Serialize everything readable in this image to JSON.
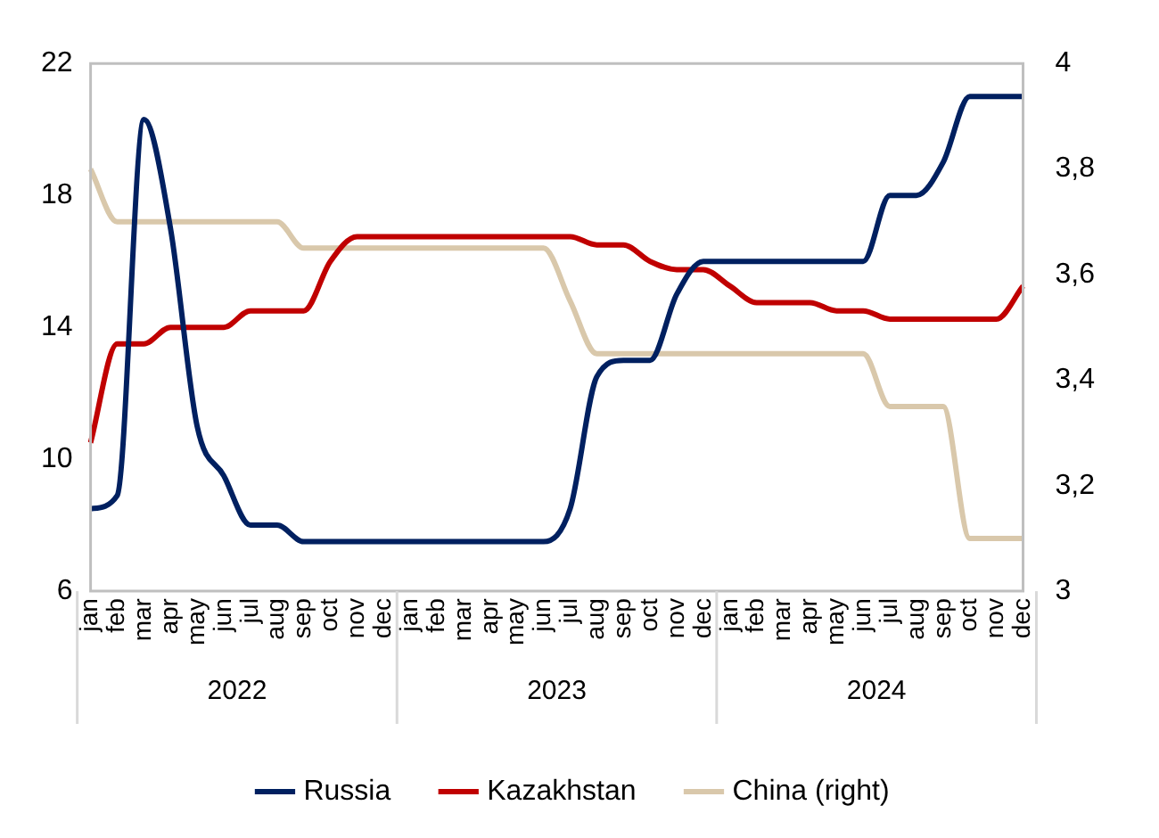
{
  "chart_data": {
    "type": "line",
    "categories": [
      "jan",
      "feb",
      "mar",
      "apr",
      "may",
      "jun",
      "jul",
      "aug",
      "sep",
      "oct",
      "nov",
      "dec",
      "jan",
      "feb",
      "mar",
      "apr",
      "may",
      "jun",
      "jul",
      "aug",
      "sep",
      "oct",
      "nov",
      "dec",
      "jan",
      "feb",
      "mar",
      "apr",
      "may",
      "jun",
      "jul",
      "aug",
      "sep",
      "oct",
      "nov",
      "dec"
    ],
    "series": [
      {
        "name": "Russia",
        "color": "#002060",
        "values": [
          8.5,
          8.9,
          20.3,
          17,
          11,
          9.5,
          8,
          8,
          7.5,
          7.5,
          7.5,
          7.5,
          7.5,
          7.5,
          7.5,
          7.5,
          7.5,
          7.5,
          8.5,
          12.5,
          13,
          13,
          15,
          16,
          16,
          16,
          16,
          16,
          16,
          16,
          18,
          18,
          19,
          21,
          21,
          21
        ]
      },
      {
        "name": "Kazakhstan",
        "color": "#c00000",
        "values": [
          10.5,
          13.5,
          13.5,
          14,
          14,
          14,
          14.5,
          14.5,
          14.5,
          16,
          16.75,
          16.75,
          16.75,
          16.75,
          16.75,
          16.75,
          16.75,
          16.75,
          16.75,
          16.5,
          16.5,
          16,
          15.75,
          15.75,
          15.25,
          14.75,
          14.75,
          14.75,
          14.5,
          14.5,
          14.25,
          14.25,
          14.25,
          14.25,
          14.25,
          15.25
        ]
      },
      {
        "name": "China (right)",
        "color": "#d9c8ab",
        "axis": "y2",
        "values": [
          3.8,
          3.7,
          3.7,
          3.7,
          3.7,
          3.7,
          3.7,
          3.7,
          3.65,
          3.65,
          3.65,
          3.65,
          3.65,
          3.65,
          3.65,
          3.65,
          3.65,
          3.65,
          3.55,
          3.45,
          3.45,
          3.45,
          3.45,
          3.45,
          3.45,
          3.45,
          3.45,
          3.45,
          3.45,
          3.45,
          3.35,
          3.35,
          3.35,
          3.1,
          3.1,
          3.1
        ]
      }
    ],
    "ylim": [
      6,
      22
    ],
    "yticks": [
      6,
      10,
      14,
      18,
      22
    ],
    "y2lim": [
      3,
      4
    ],
    "y2ticks": [
      3,
      {
        "value": 3.2,
        "label": "3,2"
      },
      {
        "value": 3.4,
        "label": "3,4"
      },
      {
        "value": 3.6,
        "label": "3,6"
      },
      {
        "value": 3.8,
        "label": "3,8"
      },
      4
    ],
    "annotations": [
      "2022",
      "2023",
      "2024"
    ],
    "grid": false,
    "legend": "bottom",
    "marker": "none",
    "line_style": "solid"
  }
}
